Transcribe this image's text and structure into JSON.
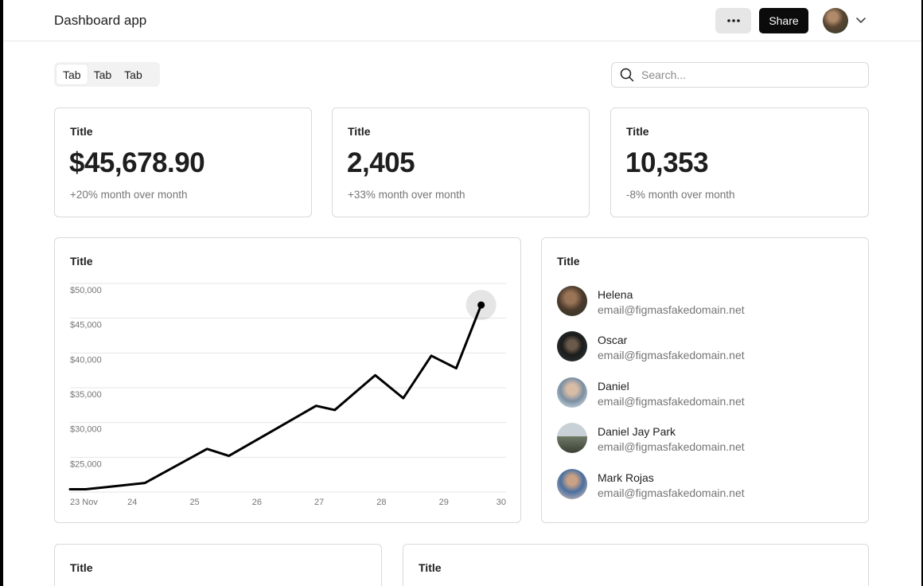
{
  "app": {
    "title": "Dashboard app",
    "share_label": "Share"
  },
  "tabs": [
    {
      "label": "Tab",
      "active": true
    },
    {
      "label": "Tab",
      "active": false
    },
    {
      "label": "Tab",
      "active": false
    }
  ],
  "search": {
    "placeholder": "Search..."
  },
  "stats": [
    {
      "title": "Title",
      "value": "$45,678.90",
      "change": "+20% month over month"
    },
    {
      "title": "Title",
      "value": "2,405",
      "change": "+33% month over month"
    },
    {
      "title": "Title",
      "value": "10,353",
      "change": "-8% month over month"
    }
  ],
  "chart_card": {
    "title": "Title"
  },
  "chart_data": {
    "type": "line",
    "title": "",
    "xlabel": "",
    "ylabel": "",
    "y_tick_labels": [
      "$50,000",
      "$45,000",
      "$40,000",
      "$35,000",
      "$30,000",
      "$25,000"
    ],
    "x_tick_labels": [
      "23 Nov",
      "24",
      "25",
      "26",
      "27",
      "28",
      "29",
      "30"
    ],
    "ylim": [
      20000,
      50000
    ],
    "xlim": [
      23,
      30
    ],
    "grid": true,
    "series": [
      {
        "color": "#000000",
        "x": [
          23.0,
          23.25,
          24.2,
          25.2,
          25.55,
          26.25,
          26.95,
          27.25,
          27.9,
          28.35,
          28.8,
          29.2,
          29.6
        ],
        "y": [
          20400,
          20400,
          21300,
          26200,
          25200,
          28800,
          32400,
          31800,
          36800,
          33500,
          39600,
          37800,
          46900
        ]
      }
    ],
    "highlight_point": {
      "x": 29.6,
      "y": 46900
    }
  },
  "people_card": {
    "title": "Title",
    "people": [
      {
        "name": "Helena",
        "email": "email@figmasfakedomain.net"
      },
      {
        "name": "Oscar",
        "email": "email@figmasfakedomain.net"
      },
      {
        "name": "Daniel",
        "email": "email@figmasfakedomain.net"
      },
      {
        "name": "Daniel Jay Park",
        "email": "email@figmasfakedomain.net"
      },
      {
        "name": "Mark Rojas",
        "email": "email@figmasfakedomain.net"
      }
    ]
  },
  "bottom_cards": [
    {
      "title": "Title"
    },
    {
      "title": "Title"
    }
  ]
}
